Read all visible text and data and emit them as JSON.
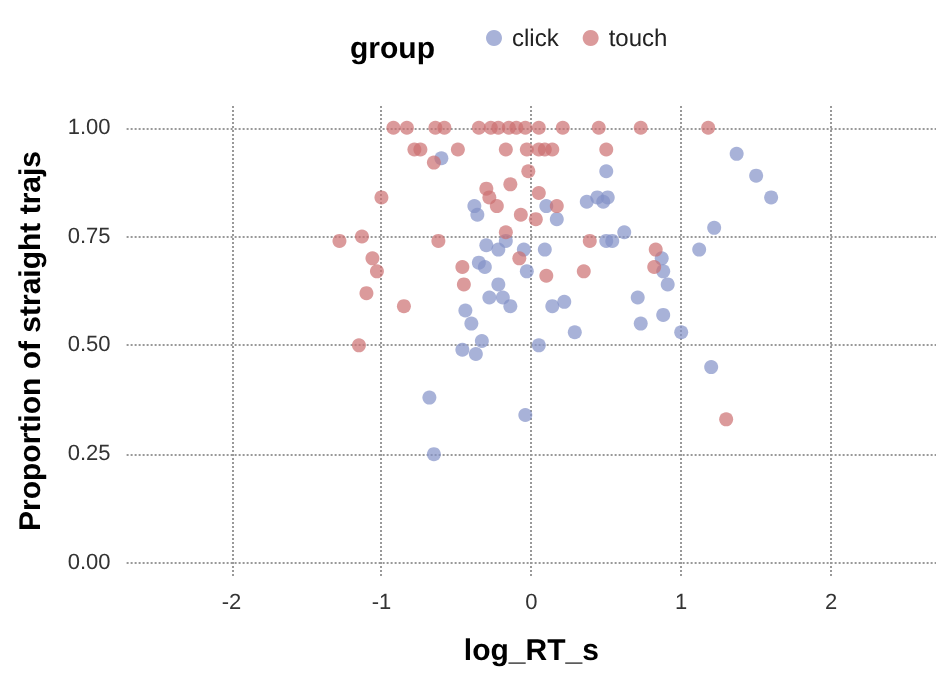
{
  "chart_data": {
    "type": "scatter",
    "xlabel": "log_RT_s",
    "ylabel": "Proportion of straight trajs",
    "legend_title": "group",
    "legend": "top",
    "grid": true,
    "marker": "circle",
    "xlim": [
      -2.7,
      2.7
    ],
    "xticks": [
      -2,
      -1,
      0,
      1,
      2
    ],
    "ylim": [
      -0.03,
      1.05
    ],
    "yticks": [
      {
        "value": 0,
        "label": "0.00"
      },
      {
        "value": 0.25,
        "label": "0.25"
      },
      {
        "value": 0.5,
        "label": "0.50"
      },
      {
        "value": 0.75,
        "label": "0.75"
      },
      {
        "value": 1,
        "label": "1.00"
      }
    ],
    "series": [
      {
        "name": "click",
        "color": "#8391c8",
        "x": [
          -0.6,
          1.37,
          1.5,
          1.6,
          0.5,
          0.44,
          0.48,
          0.51,
          0.1,
          0.37,
          0.17,
          0.5,
          0.54,
          0.62,
          1.22,
          1.12,
          0.87,
          0.88,
          0.91,
          0.71,
          0.88,
          0.73,
          1.0,
          1.2,
          -0.38,
          -0.36,
          -0.3,
          -0.22,
          -0.31,
          -0.35,
          -0.17,
          -0.22,
          -0.19,
          -0.44,
          -0.4,
          -0.46,
          -0.37,
          -0.33,
          -0.68,
          -0.65,
          -0.04,
          -0.28,
          -0.14,
          0.14,
          0.22,
          0.29,
          0.05,
          -0.03,
          0.09,
          -0.05
        ],
        "values": [
          0.93,
          0.94,
          0.89,
          0.84,
          0.9,
          0.84,
          0.83,
          0.84,
          0.82,
          0.83,
          0.79,
          0.74,
          0.74,
          0.76,
          0.77,
          0.72,
          0.7,
          0.67,
          0.64,
          0.61,
          0.57,
          0.55,
          0.53,
          0.45,
          0.82,
          0.8,
          0.73,
          0.72,
          0.68,
          0.69,
          0.74,
          0.64,
          0.61,
          0.58,
          0.55,
          0.49,
          0.48,
          0.51,
          0.38,
          0.25,
          0.34,
          0.61,
          0.59,
          0.59,
          0.6,
          0.53,
          0.5,
          0.67,
          0.72,
          0.72
        ]
      },
      {
        "name": "touch",
        "color": "#cc6f70",
        "x": [
          -0.92,
          -0.83,
          -0.64,
          -0.58,
          -0.35,
          -0.27,
          -0.22,
          -0.15,
          -0.1,
          -0.04,
          0.05,
          0.21,
          0.45,
          0.73,
          1.18,
          -0.78,
          -0.74,
          -0.49,
          -0.17,
          -0.03,
          0.05,
          0.09,
          0.14,
          0.5,
          -1.0,
          -0.65,
          -0.3,
          0.05,
          -0.28,
          -1.28,
          -1.13,
          -1.06,
          -1.03,
          -1.1,
          -1.15,
          -0.85,
          -0.62,
          -0.46,
          -0.45,
          -0.23,
          -0.17,
          -0.07,
          0.03,
          0.17,
          0.39,
          0.35,
          0.83,
          0.82,
          -0.08,
          0.1,
          1.3,
          -0.14,
          -0.02
        ],
        "values": [
          1,
          1,
          1,
          1,
          1,
          1,
          1,
          1,
          1,
          1,
          1,
          1,
          1,
          1,
          1,
          0.95,
          0.95,
          0.95,
          0.95,
          0.95,
          0.95,
          0.95,
          0.95,
          0.95,
          0.84,
          0.92,
          0.86,
          0.85,
          0.84,
          0.74,
          0.75,
          0.7,
          0.67,
          0.62,
          0.5,
          0.59,
          0.74,
          0.68,
          0.64,
          0.82,
          0.76,
          0.8,
          0.79,
          0.82,
          0.74,
          0.67,
          0.72,
          0.68,
          0.7,
          0.66,
          0.33,
          0.87,
          0.9
        ]
      }
    ]
  }
}
